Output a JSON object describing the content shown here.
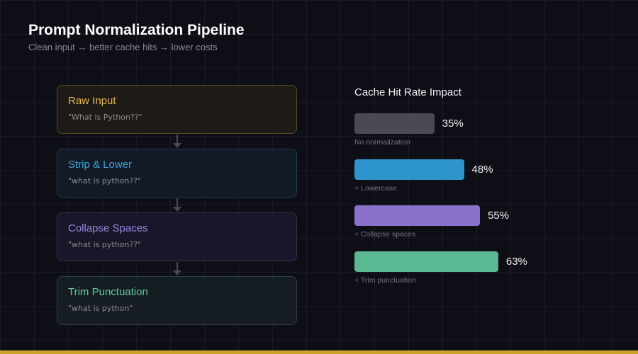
{
  "header": {
    "title": "Prompt Normalization Pipeline",
    "subtitle": "Clean input → better cache hits → lower costs"
  },
  "pipeline": [
    {
      "title": "Raw Input",
      "value": "\"What is  Python??\"",
      "color": "#e8b84a",
      "bg": "#1e1a15",
      "border": "#5a4a22"
    },
    {
      "title": "Strip & Lower",
      "value": "\"what is  python??\"",
      "color": "#3aa6dd",
      "bg": "#111a25",
      "border": "#1f3d55"
    },
    {
      "title": "Collapse Spaces",
      "value": "\"what is python??\"",
      "color": "#9b85e0",
      "bg": "#18172a",
      "border": "#34304f"
    },
    {
      "title": "Trim Punctuation",
      "value": "\"what is python\"",
      "color": "#5fcf9e",
      "bg": "#151d22",
      "border": "#2b3f3e"
    }
  ],
  "chart_data": {
    "type": "bar",
    "orientation": "horizontal",
    "title": "Cache Hit Rate Impact",
    "categories": [
      "No normalization",
      "+ Lowercase",
      "+ Collapse spaces",
      "+ Trim punctuation"
    ],
    "values": [
      35,
      48,
      55,
      63
    ],
    "labels": [
      "35%",
      "48%",
      "55%",
      "63%"
    ],
    "colors": [
      "#4a4a52",
      "#2e95cc",
      "#8a72cc",
      "#5ab893"
    ]
  },
  "accent": "#c9a227"
}
